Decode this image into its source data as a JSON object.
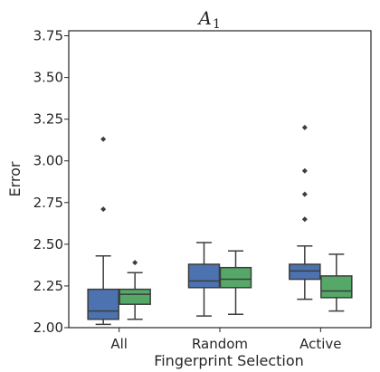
{
  "chart_data": {
    "type": "box",
    "title": "A",
    "title_subscript": "1",
    "xlabel": "Fingerprint Selection",
    "ylabel": "Error",
    "ylim": [
      2.0,
      3.78
    ],
    "yticks": [
      "2.00",
      "2.25",
      "2.50",
      "2.75",
      "3.00",
      "3.25",
      "3.50",
      "3.75"
    ],
    "ytick_values": [
      2.0,
      2.25,
      2.5,
      2.75,
      3.0,
      3.25,
      3.5,
      3.75
    ],
    "categories": [
      "All",
      "Random",
      "Active"
    ],
    "grid": false,
    "legend": "none",
    "series": [
      {
        "color": "#4c72b0",
        "boxes": [
          {
            "whisker_low": 2.02,
            "q1": 2.05,
            "median": 2.1,
            "q3": 2.23,
            "whisker_high": 2.43,
            "outliers": [
              2.71,
              3.13
            ]
          },
          {
            "whisker_low": 2.07,
            "q1": 2.24,
            "median": 2.28,
            "q3": 2.38,
            "whisker_high": 2.51,
            "outliers": []
          },
          {
            "whisker_low": 2.17,
            "q1": 2.29,
            "median": 2.34,
            "q3": 2.38,
            "whisker_high": 2.49,
            "outliers": [
              2.65,
              2.8,
              2.94,
              3.2
            ]
          }
        ]
      },
      {
        "color": "#55a868",
        "boxes": [
          {
            "whisker_low": 2.05,
            "q1": 2.14,
            "median": 2.2,
            "q3": 2.23,
            "whisker_high": 2.33,
            "outliers": [
              2.39
            ]
          },
          {
            "whisker_low": 2.08,
            "q1": 2.24,
            "median": 2.29,
            "q3": 2.36,
            "whisker_high": 2.46,
            "outliers": []
          },
          {
            "whisker_low": 2.1,
            "q1": 2.18,
            "median": 2.22,
            "q3": 2.31,
            "whisker_high": 2.44,
            "outliers": []
          }
        ]
      }
    ]
  }
}
